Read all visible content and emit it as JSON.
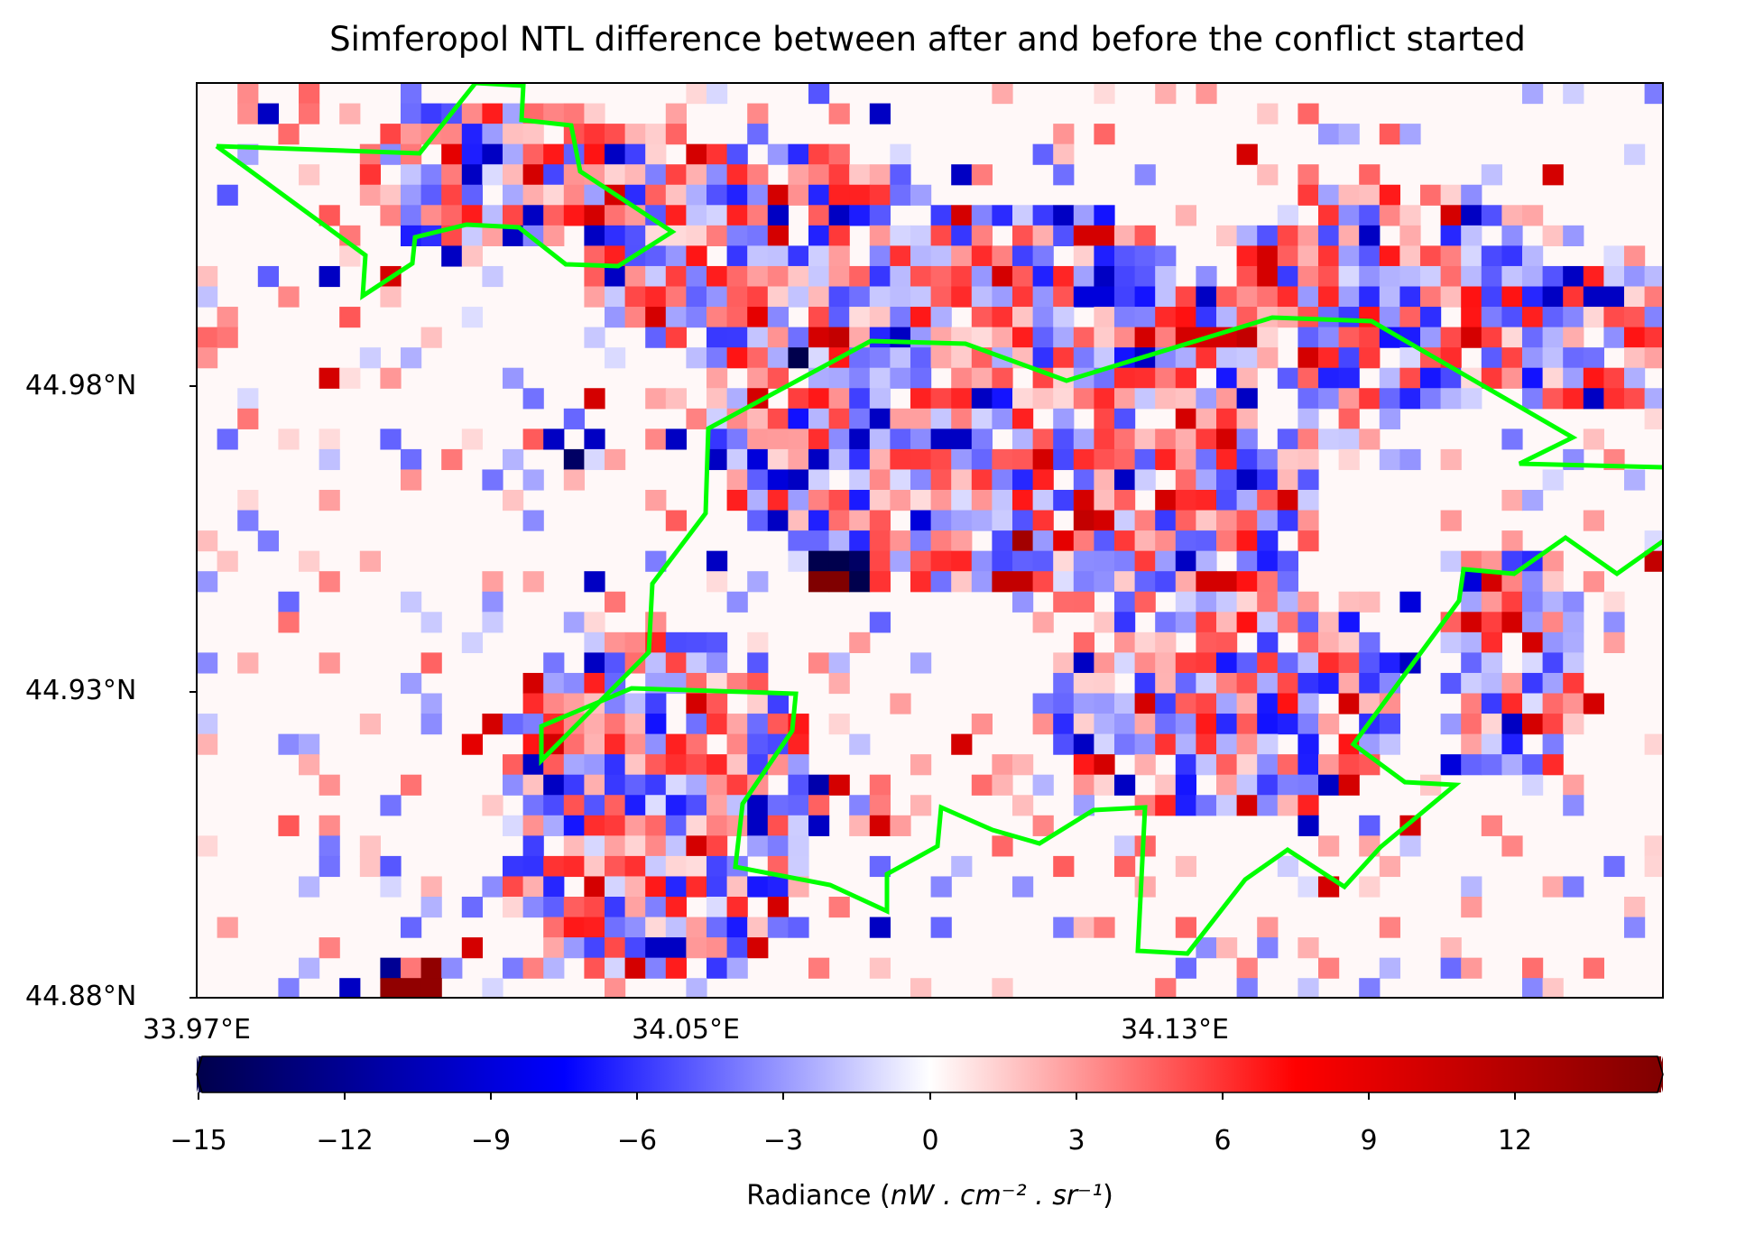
{
  "chart_data": {
    "type": "heatmap",
    "title": "Simferopol NTL difference between after and before the conflict started",
    "x_ticks": [
      "33.97°E",
      "34.05°E",
      "34.13°E"
    ],
    "y_ticks": [
      "44.98°N",
      "44.93°N",
      "44.88°N"
    ],
    "colorbar": {
      "colormap": "seismic",
      "vmin": -15,
      "vmax": 15,
      "extend": "both",
      "ticks": [
        "−15",
        "−12",
        "−9",
        "−6",
        "−3",
        "0",
        "3",
        "6",
        "9",
        "12"
      ],
      "label_prefix": "Radiance (",
      "label_math": "nW . cm⁻² . sr⁻¹",
      "label_suffix": ")"
    },
    "grid": "off",
    "boundary_color": "#00ff00",
    "colors": {
      "background_zero": "#fff8f8",
      "boundary": "#00ff00",
      "axis": "#000000"
    }
  }
}
